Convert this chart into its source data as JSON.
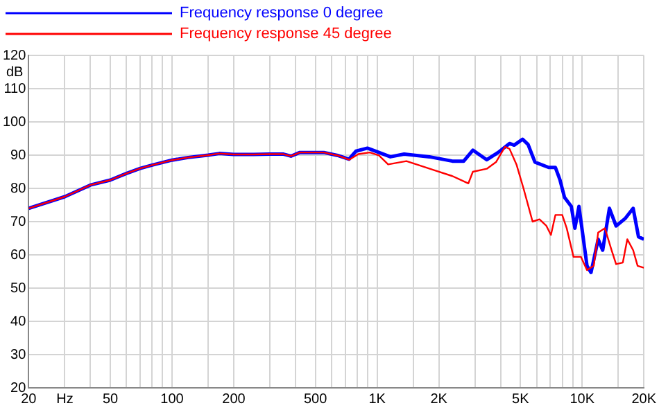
{
  "chart_data": {
    "type": "line",
    "ylabel": "dB",
    "log": "x",
    "grid": true,
    "legend": "top left",
    "marker": "none",
    "line_style": "solid",
    "xlim": [
      20,
      20000
    ],
    "ylim": [
      20,
      120
    ],
    "xticks": [
      20,
      {
        "value": 30,
        "label": "Hz"
      },
      {
        "value": 40,
        "label": null
      },
      50,
      {
        "value": 60,
        "label": null
      },
      {
        "value": 70,
        "label": null
      },
      {
        "value": 80,
        "label": null
      },
      {
        "value": 90,
        "label": null
      },
      100,
      {
        "value": 150,
        "label": null
      },
      200,
      {
        "value": 300,
        "label": null
      },
      {
        "value": 400,
        "label": null
      },
      500,
      {
        "value": 600,
        "label": null
      },
      {
        "value": 700,
        "label": null
      },
      {
        "value": 800,
        "label": null
      },
      {
        "value": 900,
        "label": null
      },
      {
        "value": 1000,
        "label": "1K"
      },
      {
        "value": 1500,
        "label": null
      },
      {
        "value": 2000,
        "label": "2K"
      },
      {
        "value": 3000,
        "label": null
      },
      {
        "value": 4000,
        "label": null
      },
      {
        "value": 5000,
        "label": "5K"
      },
      {
        "value": 6000,
        "label": null
      },
      {
        "value": 7000,
        "label": null
      },
      {
        "value": 8000,
        "label": null
      },
      {
        "value": 9000,
        "label": null
      },
      {
        "value": 10000,
        "label": "10K"
      },
      {
        "value": 15000,
        "label": null
      },
      {
        "value": 20000,
        "label": "20K"
      }
    ],
    "yticks": [
      20,
      30,
      40,
      50,
      60,
      70,
      80,
      90,
      100,
      110,
      120
    ],
    "series": [
      {
        "name": "Frequency response 0 degree",
        "color": "#0000ff",
        "x": [
          20,
          30,
          40,
          50,
          60,
          70,
          80,
          100,
          120,
          150,
          170,
          200,
          250,
          300,
          350,
          380,
          420,
          550,
          642,
          730,
          789,
          897,
          1021,
          1161,
          1355,
          1799,
          2328,
          2645,
          2931,
          3428,
          3894,
          4424,
          4660,
          5122,
          5449,
          5887,
          6863,
          7405,
          7793,
          8202,
          8853,
          9218,
          9646,
          10040,
          10560,
          11045,
          11970,
          12590,
          13580,
          14640,
          16190,
          17730,
          18830,
          20000
        ],
        "values": [
          74,
          77.5,
          81,
          82.5,
          84.5,
          86,
          87,
          88.5,
          89.3,
          90,
          90.5,
          90.2,
          90.2,
          90.3,
          90.3,
          89.7,
          90.8,
          90.8,
          89.9,
          88.8,
          91.2,
          92.1,
          90.8,
          89.5,
          90.3,
          89.5,
          88.2,
          88.2,
          91.5,
          88.6,
          90.8,
          93.5,
          93,
          94.8,
          93.2,
          87.9,
          86.3,
          86.3,
          82.6,
          77.3,
          74.6,
          68,
          74.6,
          66.7,
          56.7,
          54.7,
          64.7,
          61.4,
          74,
          68.7,
          70.9,
          74,
          65.4,
          64.7
        ]
      },
      {
        "name": "Frequency response 45 degree",
        "color": "#ff0000",
        "x": [
          20,
          30,
          40,
          50,
          60,
          70,
          80,
          100,
          120,
          150,
          170,
          200,
          250,
          300,
          350,
          380,
          420,
          550,
          642,
          730,
          810,
          921,
          1021,
          1132,
          1390,
          1894,
          2328,
          2787,
          2931,
          3428,
          3801,
          4206,
          4424,
          4782,
          5176,
          5732,
          6192,
          6695,
          7043,
          7405,
          7996,
          8410,
          9076,
          9868,
          10560,
          11390,
          11970,
          12910,
          13920,
          14640,
          15790,
          16600,
          17730,
          18640,
          20000
        ],
        "values": [
          74,
          77.5,
          81,
          82.5,
          84.5,
          86,
          87,
          88.5,
          89.3,
          90,
          90.5,
          90.2,
          90.2,
          90.3,
          90.3,
          89.7,
          90.8,
          90.8,
          89.9,
          88.6,
          90.3,
          90.8,
          89.9,
          87.2,
          88.2,
          85.5,
          83.7,
          81.5,
          85,
          85.9,
          87.9,
          92.5,
          91.9,
          87.2,
          80,
          70,
          70.7,
          68.7,
          66,
          72,
          72,
          68,
          59.4,
          59.4,
          55.4,
          56.7,
          66.7,
          68,
          61.4,
          57.2,
          57.7,
          64.7,
          61.4,
          56.7,
          56.1
        ]
      }
    ]
  }
}
